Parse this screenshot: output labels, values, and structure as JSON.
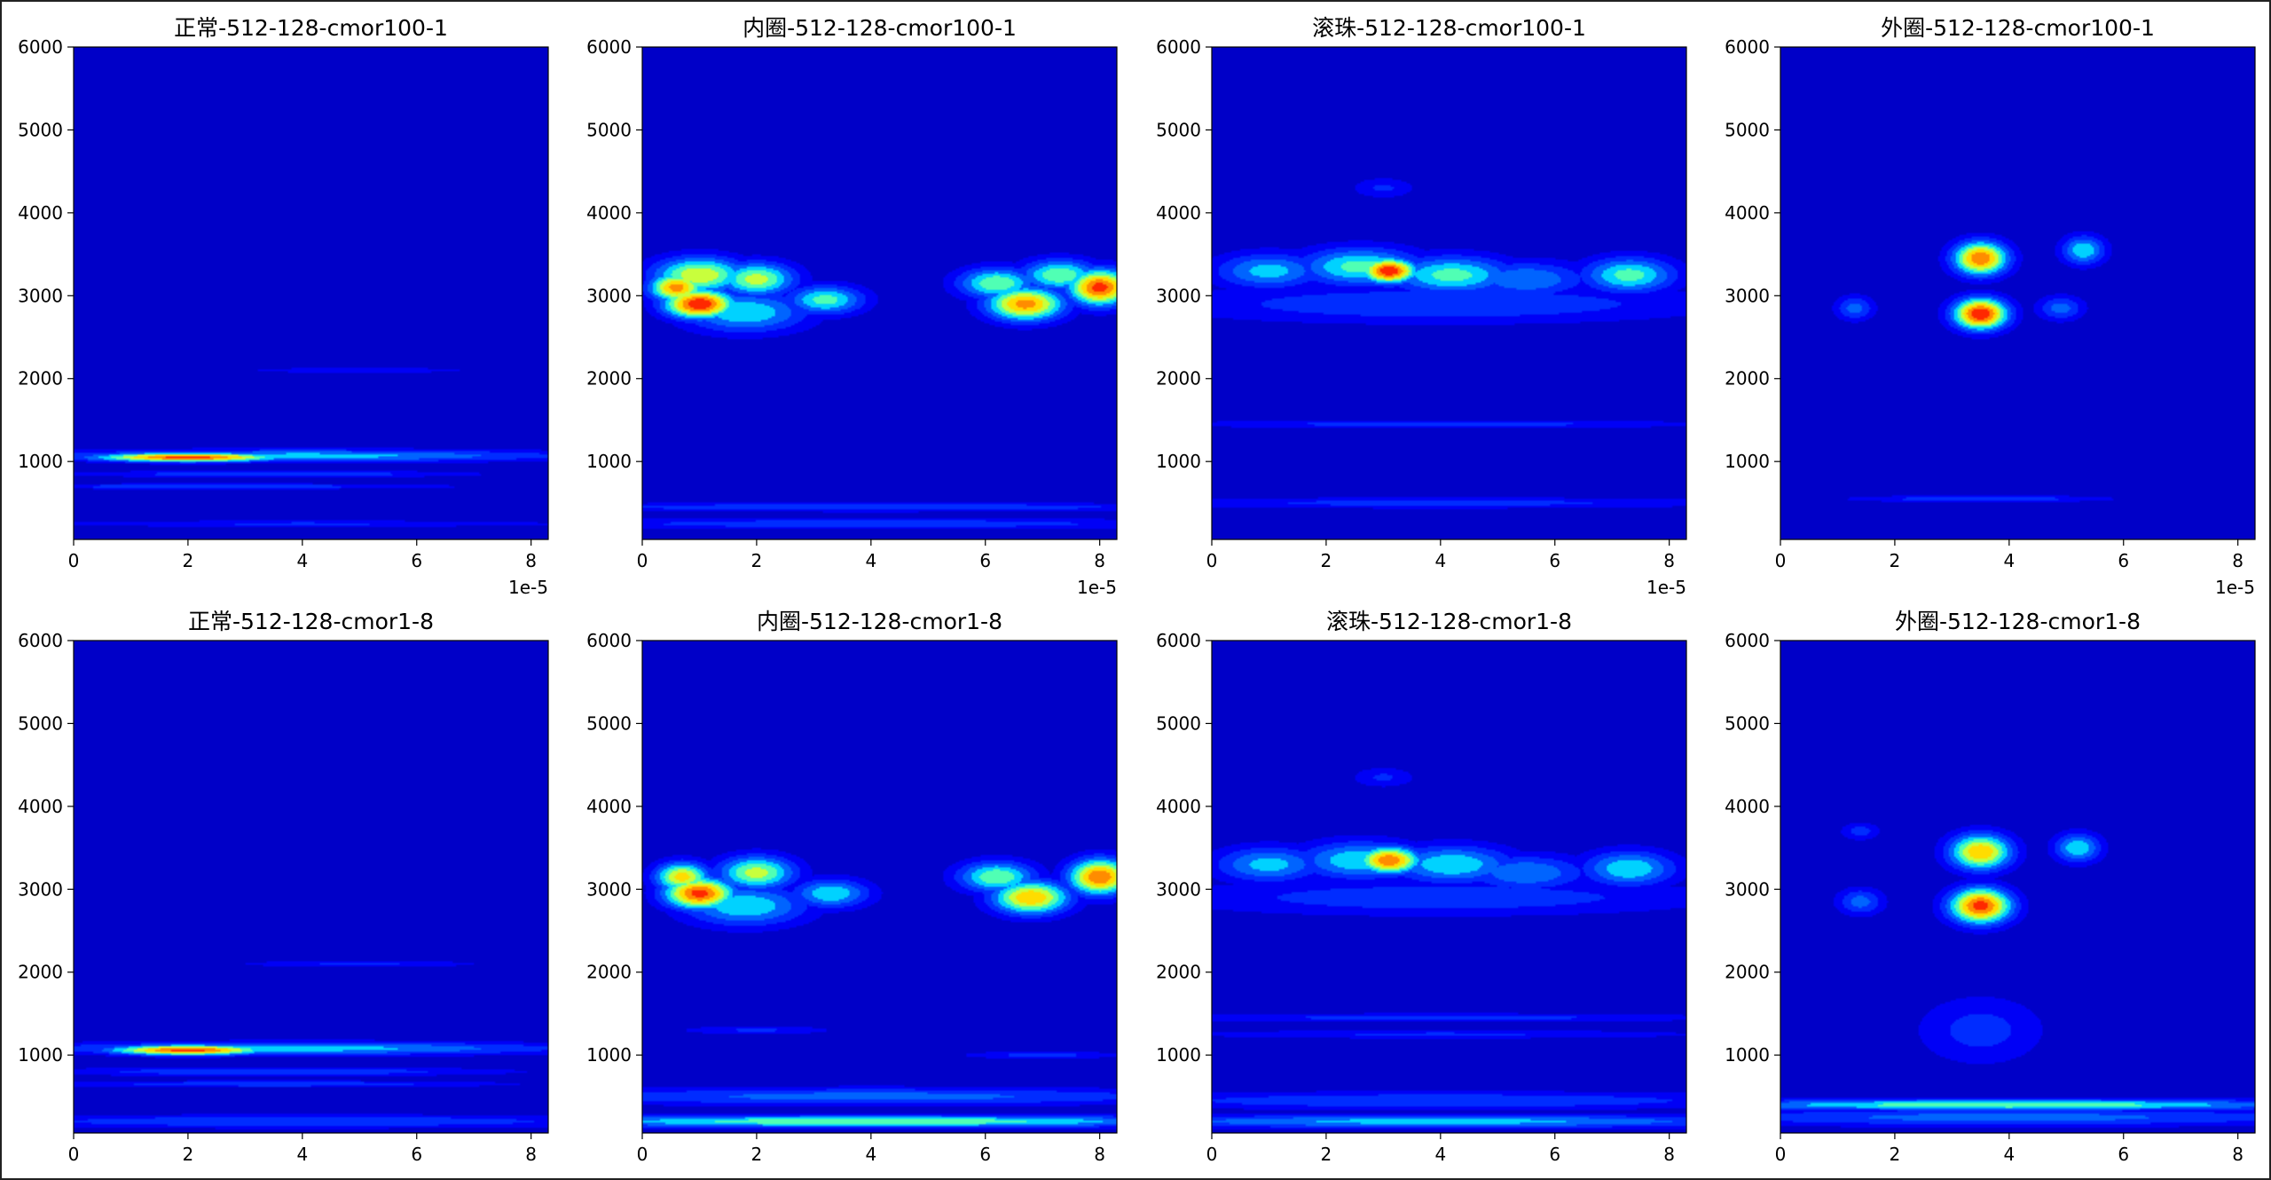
{
  "chart_data": [
    {
      "type": "heatmap",
      "title": "正常-512-128-cmor100-1",
      "x_tick_labels": [
        "0",
        "2",
        "4",
        "6",
        "8"
      ],
      "x_ticks": [
        0,
        2,
        4,
        6,
        8
      ],
      "x_offset_label": "1e-5",
      "xlim": [
        0,
        8.3
      ],
      "y_tick_labels": [
        "1000",
        "2000",
        "3000",
        "4000",
        "5000",
        "6000"
      ],
      "y_ticks": [
        1000,
        2000,
        3000,
        4000,
        5000,
        6000
      ],
      "ylim": [
        60,
        6000
      ],
      "colormap": "jet",
      "hotspots": [
        {
          "x": 2.0,
          "y": 1050,
          "sx": 1.2,
          "sy": 40,
          "intensity": 0.95
        },
        {
          "x": 4.0,
          "y": 1070,
          "sx": 3.5,
          "sy": 55,
          "intensity": 0.45
        },
        {
          "x": 3.5,
          "y": 850,
          "sx": 2.5,
          "sy": 30,
          "intensity": 0.3
        },
        {
          "x": 2.5,
          "y": 700,
          "sx": 3.0,
          "sy": 25,
          "intensity": 0.28
        },
        {
          "x": 5.0,
          "y": 2100,
          "sx": 1.5,
          "sy": 25,
          "intensity": 0.2
        },
        {
          "x": 4.0,
          "y": 250,
          "sx": 3.5,
          "sy": 30,
          "intensity": 0.22
        }
      ]
    },
    {
      "type": "heatmap",
      "title": "内圈-512-128-cmor100-1",
      "x_tick_labels": [
        "0",
        "2",
        "4",
        "6",
        "8"
      ],
      "x_ticks": [
        0,
        2,
        4,
        6,
        8
      ],
      "x_offset_label": "1e-5",
      "xlim": [
        0,
        8.3
      ],
      "y_tick_labels": [
        "1000",
        "2000",
        "3000",
        "4000",
        "5000",
        "6000"
      ],
      "y_ticks": [
        1000,
        2000,
        3000,
        4000,
        5000,
        6000
      ],
      "ylim": [
        60,
        6000
      ],
      "colormap": "jet",
      "hotspots": [
        {
          "x": 1.0,
          "y": 2900,
          "sx": 0.45,
          "sy": 130,
          "intensity": 1.0
        },
        {
          "x": 0.6,
          "y": 3100,
          "sx": 0.35,
          "sy": 130,
          "intensity": 0.85
        },
        {
          "x": 1.0,
          "y": 3250,
          "sx": 0.6,
          "sy": 160,
          "intensity": 0.7
        },
        {
          "x": 2.0,
          "y": 3200,
          "sx": 0.5,
          "sy": 150,
          "intensity": 0.65
        },
        {
          "x": 3.2,
          "y": 2950,
          "sx": 0.5,
          "sy": 130,
          "intensity": 0.55
        },
        {
          "x": 1.8,
          "y": 2800,
          "sx": 0.8,
          "sy": 180,
          "intensity": 0.5
        },
        {
          "x": 6.7,
          "y": 2900,
          "sx": 0.5,
          "sy": 150,
          "intensity": 0.85
        },
        {
          "x": 8.0,
          "y": 3100,
          "sx": 0.4,
          "sy": 160,
          "intensity": 0.95
        },
        {
          "x": 6.2,
          "y": 3150,
          "sx": 0.5,
          "sy": 140,
          "intensity": 0.6
        },
        {
          "x": 7.3,
          "y": 3250,
          "sx": 0.5,
          "sy": 140,
          "intensity": 0.6
        },
        {
          "x": 4.0,
          "y": 450,
          "sx": 4.5,
          "sy": 40,
          "intensity": 0.3
        },
        {
          "x": 4.0,
          "y": 250,
          "sx": 4.5,
          "sy": 50,
          "intensity": 0.28
        }
      ]
    },
    {
      "type": "heatmap",
      "title": "滚珠-512-128-cmor100-1",
      "x_tick_labels": [
        "0",
        "2",
        "4",
        "6",
        "8"
      ],
      "x_ticks": [
        0,
        2,
        4,
        6,
        8
      ],
      "x_offset_label": "1e-5",
      "xlim": [
        0,
        8.3
      ],
      "y_tick_labels": [
        "1000",
        "2000",
        "3000",
        "4000",
        "5000",
        "6000"
      ],
      "y_ticks": [
        1000,
        2000,
        3000,
        4000,
        5000,
        6000
      ],
      "ylim": [
        60,
        6000
      ],
      "colormap": "jet",
      "hotspots": [
        {
          "x": 3.1,
          "y": 3300,
          "sx": 0.35,
          "sy": 110,
          "intensity": 1.0
        },
        {
          "x": 2.6,
          "y": 3350,
          "sx": 0.8,
          "sy": 170,
          "intensity": 0.55
        },
        {
          "x": 4.2,
          "y": 3250,
          "sx": 0.8,
          "sy": 170,
          "intensity": 0.55
        },
        {
          "x": 1.0,
          "y": 3300,
          "sx": 0.7,
          "sy": 160,
          "intensity": 0.45
        },
        {
          "x": 5.5,
          "y": 3200,
          "sx": 0.8,
          "sy": 160,
          "intensity": 0.4
        },
        {
          "x": 7.3,
          "y": 3250,
          "sx": 0.6,
          "sy": 160,
          "intensity": 0.55
        },
        {
          "x": 4.0,
          "y": 2900,
          "sx": 3.5,
          "sy": 170,
          "intensity": 0.3
        },
        {
          "x": 4.0,
          "y": 1450,
          "sx": 3.8,
          "sy": 35,
          "intensity": 0.25
        },
        {
          "x": 4.0,
          "y": 500,
          "sx": 4.0,
          "sy": 50,
          "intensity": 0.25
        },
        {
          "x": 3.0,
          "y": 4300,
          "sx": 0.4,
          "sy": 90,
          "intensity": 0.22
        }
      ]
    },
    {
      "type": "heatmap",
      "title": "外圈-512-128-cmor100-1",
      "x_tick_labels": [
        "0",
        "2",
        "4",
        "6",
        "8"
      ],
      "x_ticks": [
        0,
        2,
        4,
        6,
        8
      ],
      "x_offset_label": "1e-5",
      "xlim": [
        0,
        8.3
      ],
      "y_tick_labels": [
        "1000",
        "2000",
        "3000",
        "4000",
        "5000",
        "6000"
      ],
      "y_ticks": [
        1000,
        2000,
        3000,
        4000,
        5000,
        6000
      ],
      "ylim": [
        60,
        6000
      ],
      "colormap": "jet",
      "hotspots": [
        {
          "x": 3.5,
          "y": 2780,
          "sx": 0.35,
          "sy": 140,
          "intensity": 1.0
        },
        {
          "x": 3.5,
          "y": 3450,
          "sx": 0.35,
          "sy": 150,
          "intensity": 0.9
        },
        {
          "x": 5.3,
          "y": 3550,
          "sx": 0.28,
          "sy": 130,
          "intensity": 0.5
        },
        {
          "x": 1.3,
          "y": 2850,
          "sx": 0.25,
          "sy": 110,
          "intensity": 0.35
        },
        {
          "x": 4.9,
          "y": 2850,
          "sx": 0.3,
          "sy": 110,
          "intensity": 0.35
        },
        {
          "x": 3.5,
          "y": 550,
          "sx": 1.6,
          "sy": 30,
          "intensity": 0.3
        }
      ]
    },
    {
      "type": "heatmap",
      "title": "正常-512-128-cmor1-8",
      "x_tick_labels": [
        "0",
        "2",
        "4",
        "6",
        "8"
      ],
      "x_ticks": [
        0,
        2,
        4,
        6,
        8
      ],
      "x_offset_label": "",
      "xlim": [
        0,
        8.3
      ],
      "y_tick_labels": [
        "1000",
        "2000",
        "3000",
        "4000",
        "5000",
        "6000"
      ],
      "y_ticks": [
        1000,
        2000,
        3000,
        4000,
        5000,
        6000
      ],
      "ylim": [
        60,
        6000
      ],
      "colormap": "jet",
      "hotspots": [
        {
          "x": 2.0,
          "y": 1060,
          "sx": 1.0,
          "sy": 45,
          "intensity": 0.95
        },
        {
          "x": 4.0,
          "y": 1080,
          "sx": 3.5,
          "sy": 60,
          "intensity": 0.45
        },
        {
          "x": 3.5,
          "y": 800,
          "sx": 3.0,
          "sy": 40,
          "intensity": 0.3
        },
        {
          "x": 3.5,
          "y": 650,
          "sx": 3.0,
          "sy": 30,
          "intensity": 0.28
        },
        {
          "x": 5.0,
          "y": 2100,
          "sx": 1.6,
          "sy": 30,
          "intensity": 0.22
        },
        {
          "x": 4.0,
          "y": 200,
          "sx": 4.5,
          "sy": 60,
          "intensity": 0.3
        }
      ]
    },
    {
      "type": "heatmap",
      "title": "内圈-512-128-cmor1-8",
      "x_tick_labels": [
        "0",
        "2",
        "4",
        "6",
        "8"
      ],
      "x_ticks": [
        0,
        2,
        4,
        6,
        8
      ],
      "x_offset_label": "",
      "xlim": [
        0,
        8.3
      ],
      "y_tick_labels": [
        "1000",
        "2000",
        "3000",
        "4000",
        "5000",
        "6000"
      ],
      "y_ticks": [
        1000,
        2000,
        3000,
        4000,
        5000,
        6000
      ],
      "ylim": [
        60,
        6000
      ],
      "colormap": "jet",
      "hotspots": [
        {
          "x": 1.0,
          "y": 2950,
          "sx": 0.45,
          "sy": 140,
          "intensity": 0.95
        },
        {
          "x": 0.7,
          "y": 3150,
          "sx": 0.35,
          "sy": 130,
          "intensity": 0.75
        },
        {
          "x": 2.0,
          "y": 3200,
          "sx": 0.5,
          "sy": 150,
          "intensity": 0.65
        },
        {
          "x": 3.3,
          "y": 2950,
          "sx": 0.5,
          "sy": 130,
          "intensity": 0.5
        },
        {
          "x": 1.8,
          "y": 2800,
          "sx": 0.8,
          "sy": 180,
          "intensity": 0.5
        },
        {
          "x": 6.8,
          "y": 2900,
          "sx": 0.5,
          "sy": 150,
          "intensity": 0.8
        },
        {
          "x": 8.0,
          "y": 3150,
          "sx": 0.4,
          "sy": 160,
          "intensity": 0.9
        },
        {
          "x": 6.2,
          "y": 3150,
          "sx": 0.5,
          "sy": 140,
          "intensity": 0.6
        },
        {
          "x": 4.0,
          "y": 200,
          "sx": 4.5,
          "sy": 55,
          "intensity": 0.6
        },
        {
          "x": 4.0,
          "y": 500,
          "sx": 4.5,
          "sy": 80,
          "intensity": 0.35
        },
        {
          "x": 2.0,
          "y": 1300,
          "sx": 1.0,
          "sy": 40,
          "intensity": 0.22
        },
        {
          "x": 7.0,
          "y": 1000,
          "sx": 1.0,
          "sy": 35,
          "intensity": 0.25
        }
      ]
    },
    {
      "type": "heatmap",
      "title": "滚珠-512-128-cmor1-8",
      "x_tick_labels": [
        "0",
        "2",
        "4",
        "6",
        "8"
      ],
      "x_ticks": [
        0,
        2,
        4,
        6,
        8
      ],
      "x_offset_label": "",
      "xlim": [
        0,
        8.3
      ],
      "y_tick_labels": [
        "1000",
        "2000",
        "3000",
        "4000",
        "5000",
        "6000"
      ],
      "y_ticks": [
        1000,
        2000,
        3000,
        4000,
        5000,
        6000
      ],
      "ylim": [
        60,
        6000
      ],
      "colormap": "jet",
      "hotspots": [
        {
          "x": 3.1,
          "y": 3350,
          "sx": 0.4,
          "sy": 120,
          "intensity": 0.9
        },
        {
          "x": 2.6,
          "y": 3350,
          "sx": 0.8,
          "sy": 170,
          "intensity": 0.5
        },
        {
          "x": 4.2,
          "y": 3300,
          "sx": 0.8,
          "sy": 170,
          "intensity": 0.5
        },
        {
          "x": 1.0,
          "y": 3300,
          "sx": 0.7,
          "sy": 160,
          "intensity": 0.45
        },
        {
          "x": 5.5,
          "y": 3200,
          "sx": 0.8,
          "sy": 160,
          "intensity": 0.4
        },
        {
          "x": 7.3,
          "y": 3250,
          "sx": 0.6,
          "sy": 160,
          "intensity": 0.5
        },
        {
          "x": 4.0,
          "y": 2900,
          "sx": 3.5,
          "sy": 160,
          "intensity": 0.28
        },
        {
          "x": 4.0,
          "y": 1450,
          "sx": 3.8,
          "sy": 40,
          "intensity": 0.25
        },
        {
          "x": 4.0,
          "y": 1250,
          "sx": 3.5,
          "sy": 40,
          "intensity": 0.22
        },
        {
          "x": 4.0,
          "y": 200,
          "sx": 4.5,
          "sy": 60,
          "intensity": 0.45
        },
        {
          "x": 4.0,
          "y": 450,
          "sx": 4.5,
          "sy": 80,
          "intensity": 0.3
        },
        {
          "x": 3.0,
          "y": 4350,
          "sx": 0.4,
          "sy": 90,
          "intensity": 0.22
        }
      ]
    },
    {
      "type": "heatmap",
      "title": "外圈-512-128-cmor1-8",
      "x_tick_labels": [
        "0",
        "2",
        "4",
        "6",
        "8"
      ],
      "x_ticks": [
        0,
        2,
        4,
        6,
        8
      ],
      "x_offset_label": "",
      "xlim": [
        0,
        8.3
      ],
      "y_tick_labels": [
        "1000",
        "2000",
        "3000",
        "4000",
        "5000",
        "6000"
      ],
      "y_ticks": [
        1000,
        2000,
        3000,
        4000,
        5000,
        6000
      ],
      "ylim": [
        60,
        6000
      ],
      "colormap": "jet",
      "hotspots": [
        {
          "x": 3.5,
          "y": 2800,
          "sx": 0.4,
          "sy": 160,
          "intensity": 0.95
        },
        {
          "x": 3.5,
          "y": 3450,
          "sx": 0.4,
          "sy": 160,
          "intensity": 0.8
        },
        {
          "x": 5.2,
          "y": 3500,
          "sx": 0.3,
          "sy": 130,
          "intensity": 0.5
        },
        {
          "x": 1.4,
          "y": 2850,
          "sx": 0.3,
          "sy": 120,
          "intensity": 0.35
        },
        {
          "x": 1.4,
          "y": 3700,
          "sx": 0.25,
          "sy": 80,
          "intensity": 0.25
        },
        {
          "x": 3.5,
          "y": 1300,
          "sx": 0.8,
          "sy": 300,
          "intensity": 0.25
        },
        {
          "x": 4.0,
          "y": 400,
          "sx": 4.0,
          "sy": 50,
          "intensity": 0.6
        },
        {
          "x": 4.0,
          "y": 250,
          "sx": 4.5,
          "sy": 80,
          "intensity": 0.35
        }
      ]
    }
  ],
  "colors": {
    "background": "#ffffff",
    "axis": "#000000",
    "colormap_low": "#0000c8",
    "colormap_high": "#b40000"
  }
}
